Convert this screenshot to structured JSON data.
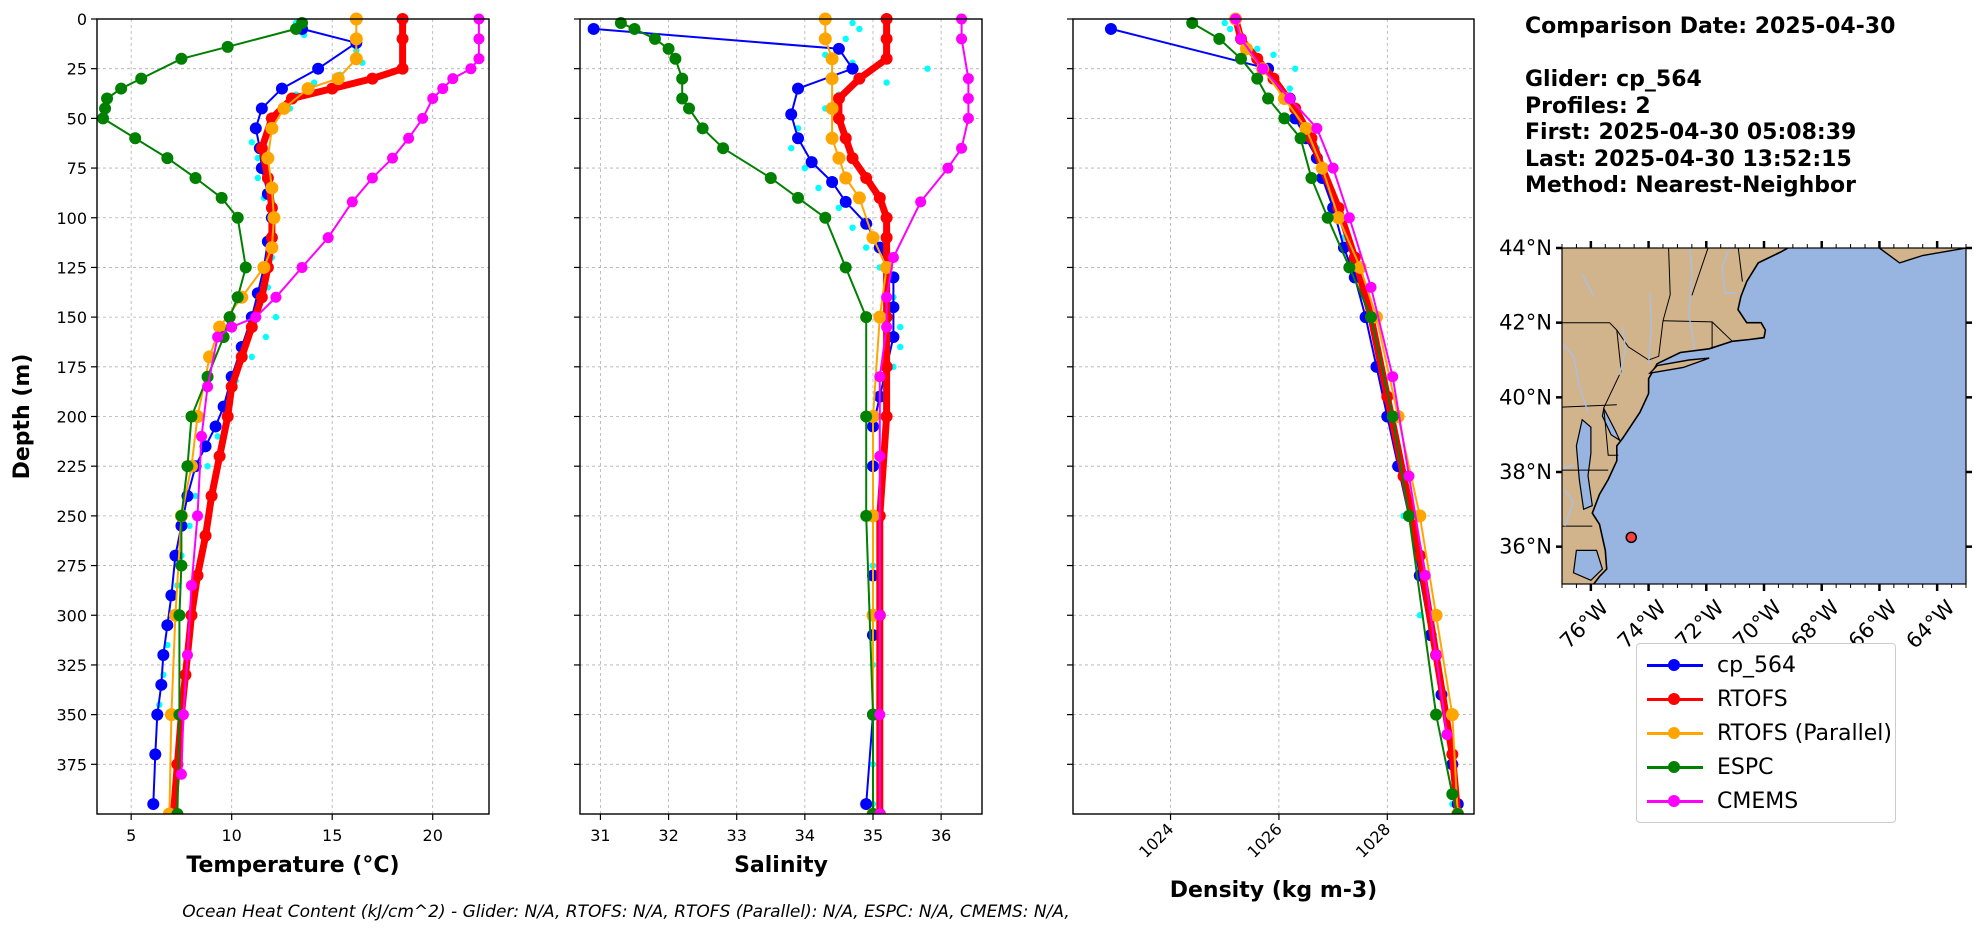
{
  "info": {
    "comparison_date": "Comparison Date: 2025-04-30",
    "glider": "Glider: cp_564",
    "profiles": "Profiles: 2",
    "first": "First: 2025-04-30 05:08:39",
    "last": "Last: 2025-04-30 13:52:15",
    "method": "Method: Nearest-Neighbor"
  },
  "footer": "Ocean Heat Content (kJ/cm^2) - Glider: N/A,  RTOFS: N/A,  RTOFS (Parallel): N/A,  ESPC: N/A,  CMEMS: N/A,",
  "colors": {
    "cp_564": "#0000ff",
    "glider_obs": "#00ffff",
    "RTOFS": "#ff0000",
    "RTOFS (Parallel)": "#ffa500",
    "ESPC": "#008000",
    "CMEMS": "#ff00ff",
    "land": "#d2b48c",
    "ocean": "#98b4e0",
    "grid": "#b0b0b0"
  },
  "legend": [
    {
      "name": "cp_564",
      "color": "#0000ff"
    },
    {
      "name": "RTOFS",
      "color": "#ff0000"
    },
    {
      "name": "RTOFS (Parallel)",
      "color": "#ffa500"
    },
    {
      "name": "ESPC",
      "color": "#008000"
    },
    {
      "name": "CMEMS",
      "color": "#ff00ff"
    }
  ],
  "chart_data": [
    {
      "type": "line",
      "xlabel": "Temperature (°C)",
      "ylabel": "Depth (m)",
      "xlim": [
        3.3,
        22.8
      ],
      "ylim": [
        400,
        0
      ],
      "xticks": [
        5,
        10,
        15,
        20
      ],
      "yticks": [
        0,
        25,
        50,
        75,
        100,
        125,
        150,
        175,
        200,
        225,
        250,
        275,
        300,
        325,
        350,
        375
      ],
      "grid": true,
      "series": [
        {
          "name": "glider obs",
          "style": "dots",
          "x": [
            13.2,
            13.6,
            16.2,
            16.5,
            15.4,
            14.1,
            13.2,
            12.9,
            11.8,
            11.0,
            11.3,
            11.3,
            11.6,
            11.9,
            12.1,
            12.0,
            11.8,
            12.2,
            11.7,
            11.0,
            10.2,
            9.8,
            9.3,
            8.8,
            8.2,
            7.9,
            7.5,
            7.3,
            7.1,
            6.8,
            6.6,
            6.4,
            6.3,
            6.2
          ],
          "y": [
            2,
            8,
            16,
            22,
            28,
            32,
            38,
            45,
            55,
            62,
            70,
            80,
            90,
            100,
            110,
            120,
            135,
            150,
            160,
            170,
            182,
            195,
            210,
            225,
            240,
            255,
            270,
            285,
            300,
            315,
            330,
            345,
            370,
            395
          ]
        },
        {
          "name": "cp_564",
          "x": [
            13.5,
            16.2,
            14.3,
            12.5,
            11.5,
            11.2,
            11.4,
            11.5,
            11.8,
            12.0,
            11.8,
            11.6,
            11.3,
            11.0,
            10.5,
            10.0,
            9.6,
            9.2,
            8.7,
            8.2,
            7.8,
            7.5,
            7.2,
            7.0,
            6.8,
            6.6,
            6.5,
            6.3,
            6.2,
            6.1
          ],
          "y": [
            5,
            12,
            25,
            35,
            45,
            55,
            65,
            75,
            88,
            100,
            112,
            125,
            138,
            150,
            165,
            180,
            195,
            205,
            215,
            225,
            240,
            255,
            270,
            290,
            305,
            320,
            335,
            350,
            370,
            395
          ]
        },
        {
          "name": "RTOFS",
          "x": [
            18.5,
            18.5,
            18.5,
            17.0,
            15.0,
            13.0,
            12.0,
            11.5,
            11.8,
            12.0,
            12.0,
            11.8,
            11.5,
            11.0,
            10.5,
            10.0,
            9.8,
            9.4,
            9.0,
            8.7,
            8.3,
            8.0,
            7.7,
            7.5,
            7.3,
            7.1
          ],
          "y": [
            0,
            10,
            25,
            30,
            35,
            40,
            50,
            65,
            80,
            95,
            110,
            125,
            140,
            155,
            170,
            185,
            200,
            220,
            240,
            260,
            280,
            300,
            330,
            350,
            375,
            400
          ]
        },
        {
          "name": "RTOFS (Parallel)",
          "x": [
            16.2,
            16.2,
            16.2,
            15.3,
            13.8,
            12.6,
            12.0,
            11.8,
            12.0,
            12.1,
            12.0,
            11.6,
            10.5,
            9.4,
            8.9,
            8.3,
            8.0,
            7.5,
            7.2,
            7.0,
            6.9
          ],
          "y": [
            0,
            10,
            20,
            30,
            35,
            45,
            55,
            70,
            85,
            100,
            115,
            125,
            140,
            155,
            170,
            200,
            225,
            250,
            300,
            350,
            400
          ]
        },
        {
          "name": "ESPC",
          "x": [
            13.5,
            13.2,
            9.8,
            7.5,
            5.5,
            4.5,
            3.8,
            3.7,
            3.6,
            5.2,
            6.8,
            8.2,
            9.5,
            10.3,
            10.7,
            10.3,
            9.9,
            9.6,
            8.8,
            8.0,
            7.8,
            7.5,
            7.5,
            7.4,
            7.4,
            7.3
          ],
          "y": [
            2,
            5,
            14,
            20,
            30,
            35,
            40,
            45,
            50,
            60,
            70,
            80,
            90,
            100,
            125,
            140,
            150,
            160,
            180,
            200,
            225,
            250,
            275,
            300,
            350,
            400
          ]
        },
        {
          "name": "CMEMS",
          "x": [
            22.3,
            22.3,
            22.3,
            21.9,
            21.0,
            20.5,
            20.0,
            19.5,
            18.8,
            18.0,
            17.0,
            16.0,
            14.8,
            13.5,
            12.2,
            11.2,
            10.0,
            9.3,
            8.8,
            8.5,
            8.3,
            8.0,
            7.8,
            7.6,
            7.5
          ],
          "y": [
            0,
            10,
            20,
            25,
            30,
            35,
            40,
            50,
            60,
            70,
            80,
            92,
            110,
            125,
            140,
            150,
            155,
            160,
            185,
            210,
            250,
            285,
            320,
            350,
            380
          ]
        }
      ]
    },
    {
      "type": "line",
      "xlabel": "Salinity",
      "xlim": [
        30.7,
        36.6
      ],
      "ylim": [
        400,
        0
      ],
      "xticks": [
        31,
        32,
        33,
        34,
        35,
        36
      ],
      "grid": true,
      "series": [
        {
          "name": "glider obs",
          "style": "dots",
          "x": [
            34.7,
            34.8,
            34.6,
            34.3,
            34.7,
            35.8,
            35.2,
            34.5,
            34.3,
            33.9,
            33.8,
            34.0,
            34.2,
            34.5,
            34.7,
            34.9,
            35.1,
            35.3,
            35.4,
            35.4,
            35.3,
            35.2,
            35.1,
            35.0,
            35.0,
            35.0,
            35.0,
            35.0,
            35.0,
            35.0,
            35.0
          ],
          "y": [
            2,
            5,
            10,
            18,
            22,
            25,
            32,
            38,
            45,
            55,
            65,
            75,
            85,
            95,
            105,
            115,
            125,
            140,
            155,
            165,
            175,
            185,
            200,
            225,
            250,
            275,
            300,
            325,
            350,
            375,
            395
          ]
        },
        {
          "name": "cp_564",
          "x": [
            30.9,
            34.5,
            34.7,
            33.9,
            33.8,
            33.9,
            34.1,
            34.4,
            34.6,
            34.9,
            35.1,
            35.3,
            35.3,
            35.3,
            35.2,
            35.1,
            35.0,
            35.0,
            35.0,
            35.0,
            35.0,
            35.0,
            34.9
          ],
          "y": [
            5,
            15,
            25,
            35,
            48,
            60,
            72,
            82,
            92,
            103,
            115,
            130,
            145,
            160,
            175,
            190,
            205,
            225,
            250,
            280,
            310,
            350,
            395
          ]
        },
        {
          "name": "RTOFS",
          "x": [
            35.2,
            35.2,
            35.2,
            34.8,
            34.5,
            34.5,
            34.6,
            34.7,
            34.9,
            35.1,
            35.2,
            35.2,
            35.2,
            35.2,
            35.2,
            35.2,
            35.1,
            35.1,
            35.1
          ],
          "y": [
            0,
            10,
            20,
            30,
            40,
            50,
            60,
            70,
            80,
            90,
            100,
            110,
            125,
            150,
            175,
            200,
            250,
            300,
            400
          ]
        },
        {
          "name": "RTOFS (Parallel)",
          "x": [
            34.3,
            34.3,
            34.4,
            34.4,
            34.4,
            34.4,
            34.5,
            34.6,
            34.8,
            35.0,
            35.2,
            35.1,
            35.0,
            35.0,
            35.0,
            35.0
          ],
          "y": [
            0,
            10,
            20,
            30,
            45,
            60,
            70,
            80,
            90,
            110,
            125,
            150,
            200,
            250,
            300,
            400
          ]
        },
        {
          "name": "ESPC",
          "x": [
            31.3,
            31.5,
            31.8,
            32.0,
            32.1,
            32.2,
            32.2,
            32.3,
            32.5,
            32.8,
            33.5,
            33.9,
            34.3,
            34.6,
            34.9,
            34.9,
            34.9,
            35.0,
            35.0
          ],
          "y": [
            2,
            5,
            10,
            15,
            20,
            30,
            40,
            45,
            55,
            65,
            80,
            90,
            100,
            125,
            150,
            200,
            250,
            350,
            400
          ]
        },
        {
          "name": "CMEMS",
          "x": [
            36.3,
            36.3,
            36.4,
            36.4,
            36.4,
            36.3,
            36.1,
            35.7,
            35.3,
            35.2,
            35.2,
            35.1,
            35.1,
            35.1,
            35.1,
            35.1
          ],
          "y": [
            0,
            10,
            30,
            40,
            50,
            65,
            75,
            92,
            120,
            140,
            155,
            180,
            220,
            300,
            350,
            400
          ]
        }
      ]
    },
    {
      "type": "line",
      "xlabel": "Density (kg m-3)",
      "xlim": [
        1022.2,
        1029.6
      ],
      "ylim": [
        400,
        0
      ],
      "xticks": [
        1024,
        1026,
        1028
      ],
      "grid": true,
      "series": [
        {
          "name": "glider obs",
          "style": "dots",
          "x": [
            1025.0,
            1025.1,
            1025.3,
            1025.6,
            1025.9,
            1026.3,
            1026.2,
            1026.3,
            1026.6,
            1026.7,
            1026.9,
            1027.0,
            1027.2,
            1027.4,
            1027.6,
            1027.8,
            1028.0,
            1028.3,
            1028.6,
            1028.9,
            1029.2
          ],
          "y": [
            2,
            5,
            10,
            15,
            18,
            25,
            35,
            45,
            55,
            65,
            75,
            90,
            110,
            130,
            150,
            175,
            200,
            250,
            300,
            350,
            395
          ]
        },
        {
          "name": "cp_564",
          "x": [
            1022.9,
            1025.8,
            1026.2,
            1026.3,
            1026.5,
            1026.7,
            1026.8,
            1027.0,
            1027.2,
            1027.4,
            1027.6,
            1027.8,
            1028.0,
            1028.2,
            1028.4,
            1028.6,
            1028.8,
            1029.0,
            1029.2,
            1029.3
          ],
          "y": [
            5,
            25,
            40,
            50,
            60,
            70,
            80,
            95,
            115,
            130,
            150,
            175,
            200,
            225,
            250,
            280,
            310,
            340,
            375,
            395
          ]
        },
        {
          "name": "RTOFS",
          "x": [
            1025.2,
            1025.3,
            1025.6,
            1025.9,
            1026.3,
            1026.6,
            1026.8,
            1027.1,
            1027.4,
            1027.7,
            1028.0,
            1028.3,
            1028.6,
            1028.9,
            1029.2,
            1029.3
          ],
          "y": [
            0,
            10,
            20,
            30,
            45,
            60,
            75,
            95,
            120,
            150,
            190,
            230,
            270,
            320,
            370,
            400
          ]
        },
        {
          "name": "RTOFS (Parallel)",
          "x": [
            1025.2,
            1025.4,
            1025.7,
            1026.1,
            1026.5,
            1026.8,
            1027.1,
            1027.5,
            1027.8,
            1028.2,
            1028.6,
            1028.9,
            1029.2,
            1029.3
          ],
          "y": [
            0,
            15,
            25,
            40,
            55,
            75,
            100,
            125,
            150,
            200,
            250,
            300,
            350,
            400
          ]
        },
        {
          "name": "ESPC",
          "x": [
            1024.4,
            1024.9,
            1025.3,
            1025.6,
            1025.8,
            1026.1,
            1026.4,
            1026.6,
            1026.9,
            1027.3,
            1027.7,
            1028.1,
            1028.4,
            1028.9,
            1029.2,
            1029.3
          ],
          "y": [
            2,
            10,
            20,
            30,
            40,
            50,
            60,
            80,
            100,
            125,
            150,
            200,
            250,
            350,
            390,
            400
          ]
        },
        {
          "name": "CMEMS",
          "x": [
            1025.2,
            1025.3,
            1025.7,
            1026.2,
            1026.7,
            1027.0,
            1027.3,
            1027.7,
            1028.1,
            1028.4,
            1028.7,
            1028.9,
            1029.1
          ],
          "y": [
            0,
            10,
            25,
            40,
            55,
            75,
            100,
            135,
            180,
            230,
            280,
            320,
            360
          ]
        }
      ]
    }
  ],
  "map": {
    "xlim": [
      -77.0,
      -63.0
    ],
    "ylim": [
      35.0,
      44.0
    ],
    "xticks": [
      -76,
      -74,
      -72,
      -70,
      -68,
      -66,
      -64
    ],
    "xtick_labels": [
      "76°W",
      "74°W",
      "72°W",
      "70°W",
      "68°W",
      "66°W",
      "64°W"
    ],
    "yticks": [
      36,
      38,
      40,
      42,
      44
    ],
    "ytick_labels": [
      "36°N",
      "38°N",
      "40°N",
      "42°N",
      "44°N"
    ],
    "glider_marker": {
      "lon": -74.6,
      "lat": 36.25
    }
  }
}
